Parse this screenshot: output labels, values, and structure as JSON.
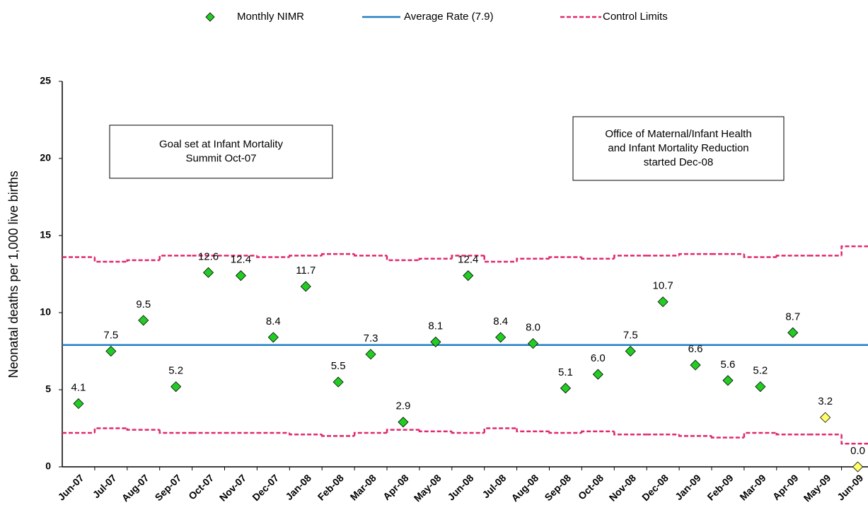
{
  "chart_data": {
    "type": "control",
    "y_label": "Neonatal deaths per 1,000 live births",
    "categories": [
      "Jun-07",
      "Jul-07",
      "Aug-07",
      "Sep-07",
      "Oct-07",
      "Nov-07",
      "Dec-07",
      "Jan-08",
      "Feb-08",
      "Mar-08",
      "Apr-08",
      "May-08",
      "Jun-08",
      "Jul-08",
      "Aug-08",
      "Sep-08",
      "Oct-08",
      "Nov-08",
      "Dec-08",
      "Jan-09",
      "Feb-09",
      "Mar-09",
      "Apr-09",
      "May-09",
      "Jun-09"
    ],
    "ylim": [
      0,
      25
    ],
    "yticks": [
      0,
      5,
      10,
      15,
      20,
      25
    ],
    "series": [
      {
        "name": "Monthly NIMR",
        "colors": [
          "#22cc22",
          "#22cc22",
          "#22cc22",
          "#22cc22",
          "#22cc22",
          "#22cc22",
          "#22cc22",
          "#22cc22",
          "#22cc22",
          "#22cc22",
          "#22cc22",
          "#22cc22",
          "#22cc22",
          "#22cc22",
          "#22cc22",
          "#22cc22",
          "#22cc22",
          "#22cc22",
          "#22cc22",
          "#22cc22",
          "#22cc22",
          "#22cc22",
          "#22cc22",
          "#ffff66",
          "#ffff66"
        ],
        "values": [
          4.1,
          7.5,
          9.5,
          5.2,
          12.6,
          12.4,
          8.4,
          11.7,
          5.5,
          7.3,
          2.9,
          8.1,
          12.4,
          8.4,
          8.0,
          5.1,
          6.0,
          7.5,
          10.7,
          6.6,
          5.6,
          5.2,
          8.7,
          3.2,
          0.0
        ],
        "value_labels": [
          "4.1",
          "7.5",
          "9.5",
          "5.2",
          "12.6",
          "12.4",
          "8.4",
          "11.7",
          "5.5",
          "7.3",
          "2.9",
          "8.1",
          "12.4",
          "8.4",
          "8.0",
          "5.1",
          "6.0",
          "7.5",
          "10.7",
          "6.6",
          "5.6",
          "5.2",
          "8.7",
          "3.2",
          "0.0"
        ]
      },
      {
        "name": "Average Rate (7.9)",
        "color": "#1f7fc4",
        "value": 7.9
      },
      {
        "name": "Control Limits",
        "color": "#e0286e",
        "upper": [
          13.6,
          13.3,
          13.4,
          13.7,
          13.7,
          13.7,
          13.6,
          13.7,
          13.8,
          13.7,
          13.4,
          13.5,
          13.7,
          13.3,
          13.5,
          13.6,
          13.5,
          13.7,
          13.7,
          13.8,
          13.8,
          13.6,
          13.7,
          13.7,
          14.3
        ],
        "lower": [
          2.2,
          2.5,
          2.4,
          2.2,
          2.2,
          2.2,
          2.2,
          2.1,
          2.0,
          2.2,
          2.4,
          2.3,
          2.2,
          2.5,
          2.3,
          2.2,
          2.3,
          2.1,
          2.1,
          2.0,
          1.9,
          2.2,
          2.1,
          2.1,
          1.5
        ]
      }
    ],
    "annotations": [
      {
        "lines": [
          "Goal set at Infant Mortality",
          "Summit Oct-07"
        ]
      },
      {
        "lines": [
          "Office of Maternal/Infant Health",
          "and Infant Mortality Reduction",
          "started Dec-08"
        ]
      }
    ]
  }
}
